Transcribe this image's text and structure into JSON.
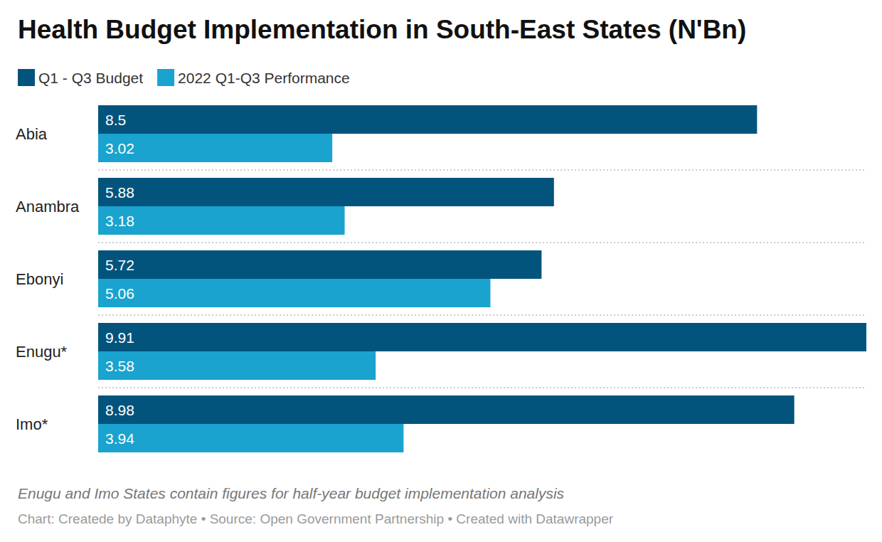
{
  "chart_data": {
    "type": "bar",
    "orientation": "horizontal",
    "title": "Health Budget Implementation in South-East States (N'Bn)",
    "categories": [
      "Abia",
      "Anambra",
      "Ebonyi",
      "Enugu*",
      "Imo*"
    ],
    "series": [
      {
        "name": "Q1 - Q3 Budget",
        "color": "#03547d",
        "values": [
          8.5,
          5.88,
          5.72,
          9.91,
          8.98
        ]
      },
      {
        "name": "2022 Q1-Q3 Performance",
        "color": "#1aa3ce",
        "values": [
          3.02,
          3.18,
          5.06,
          3.58,
          3.94
        ]
      }
    ],
    "xlim": [
      0,
      9.91
    ],
    "data_labels": true,
    "tick_labels": "y",
    "grid": true,
    "legend": "top-left",
    "annotations": [
      "Enugu and Imo States contain figures for half-year budget implementation analysis",
      "Chart: Createde by Dataphyte • Source: Open Government Partnership • Created with Datawrapper"
    ]
  }
}
